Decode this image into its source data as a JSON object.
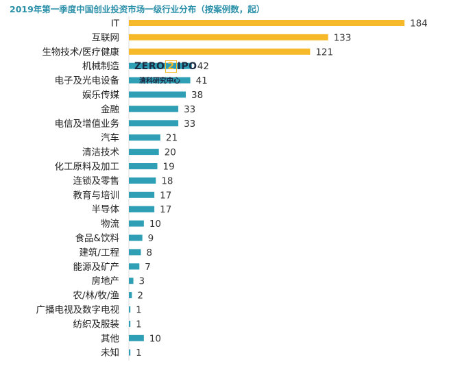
{
  "title": "2019年第一季度中国创业投资市场一级行业分布（按案例数，起）",
  "logo": {
    "line1": "ZERO",
    "digit": "2",
    "line1b": "IPO",
    "line2": "清科研究中心"
  },
  "colors": {
    "highlight": "#f5b92a",
    "bar": "#2e9fb4",
    "title": "#2a8fa8"
  },
  "chart_data": {
    "type": "bar",
    "orientation": "horizontal",
    "title": "2019年第一季度中国创业投资市场一级行业分布（按案例数，起）",
    "categories": [
      "IT",
      "互联网",
      "生物技术/医疗健康",
      "机械制造",
      "电子及光电设备",
      "娱乐传媒",
      "金融",
      "电信及增值业务",
      "汽车",
      "清洁技术",
      "化工原料及加工",
      "连锁及零售",
      "教育与培训",
      "半导体",
      "物流",
      "食品&饮料",
      "建筑/工程",
      "能源及矿产",
      "房地产",
      "农/林/牧/渔",
      "广播电视及数字电视",
      "纺织及服装",
      "其他",
      "未知"
    ],
    "values": [
      184,
      133,
      121,
      42,
      41,
      38,
      33,
      33,
      21,
      20,
      19,
      18,
      17,
      17,
      10,
      9,
      8,
      7,
      3,
      2,
      1,
      1,
      10,
      1
    ],
    "highlight_top": 3,
    "xlim": [
      0,
      184
    ],
    "grid": false,
    "legend": "none"
  }
}
